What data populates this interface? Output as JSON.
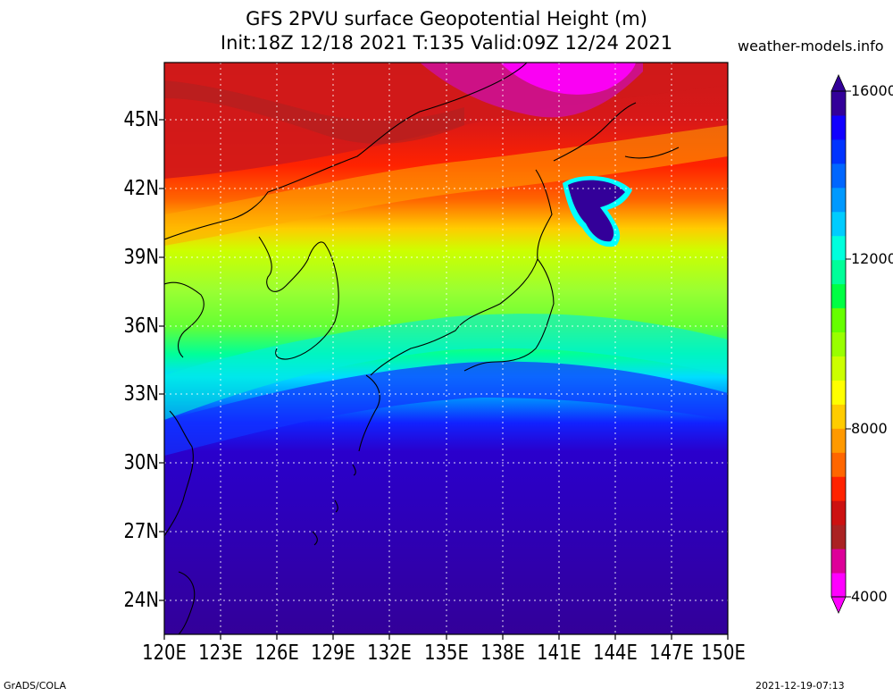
{
  "title_line1": "GFS 2PVU surface Geopotential Height (m)",
  "title_line2": "Init:18Z 12/18 2021 T:135 Valid:09Z 12/24 2021",
  "site": "weather-models.info",
  "footer_left": "GrADS/COLA",
  "footer_right": "2021-12-19-07:13",
  "map": {
    "lon_labels": [
      "120E",
      "123E",
      "126E",
      "129E",
      "132E",
      "135E",
      "138E",
      "141E",
      "144E",
      "147E",
      "150E"
    ],
    "lat_labels": [
      "45N",
      "42N",
      "39N",
      "36N",
      "33N",
      "30N",
      "27N",
      "24N"
    ],
    "lon_range": [
      120,
      150
    ],
    "lat_range": [
      22.5,
      47.5
    ],
    "grid": true
  },
  "colorbar": {
    "labels": [
      "16000",
      "12000",
      "8000",
      "4000"
    ],
    "colors": [
      "#ff00ff",
      "#dd0099",
      "#aa2222",
      "#cc1111",
      "#ff2200",
      "#ff6600",
      "#ff9900",
      "#ffcc00",
      "#ffff00",
      "#ccff00",
      "#99ff00",
      "#66ff00",
      "#00ff44",
      "#00ff99",
      "#00ffdd",
      "#00ccff",
      "#0099ff",
      "#0066ff",
      "#0033ff",
      "#1100ff",
      "#330099"
    ]
  }
}
